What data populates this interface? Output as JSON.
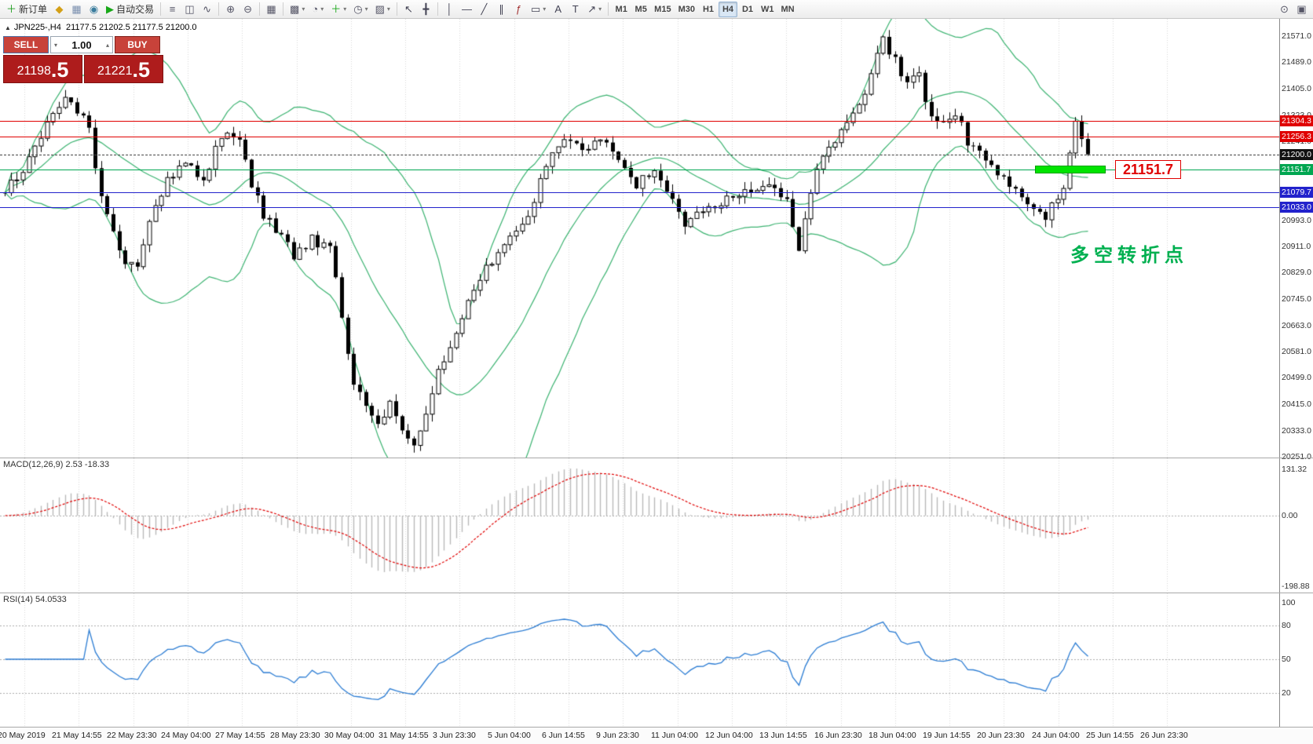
{
  "toolbar": {
    "items": [
      {
        "name": "new-order-button",
        "glyph": "＋",
        "color": "#1f9d1f",
        "label": "新订单"
      },
      {
        "name": "market-watch-button",
        "glyph": "◆",
        "color": "#d4a017"
      },
      {
        "name": "data-window-button",
        "glyph": "▦",
        "color": "#7a8fae"
      },
      {
        "name": "navigator-button",
        "glyph": "◉",
        "color": "#3b7d9e"
      },
      {
        "name": "autotrading-button",
        "glyph": "▶",
        "color": "#18a818",
        "label": "自动交易"
      },
      {
        "type": "sep"
      },
      {
        "name": "bar-chart-button",
        "glyph": "≡",
        "color": "#556"
      },
      {
        "name": "candlestick-chart-button",
        "glyph": "◫",
        "color": "#556"
      },
      {
        "name": "line-chart-button",
        "glyph": "∿",
        "color": "#556"
      },
      {
        "type": "sep"
      },
      {
        "name": "zoom-in-button",
        "glyph": "⊕",
        "color": "#556"
      },
      {
        "name": "zoom-out-button",
        "glyph": "⊖",
        "color": "#556"
      },
      {
        "type": "sep"
      },
      {
        "name": "tile-windows-button",
        "glyph": "▦",
        "color": "#556"
      },
      {
        "type": "sep"
      },
      {
        "name": "new-chart-button",
        "glyph": "▩",
        "color": "#556",
        "dd": true
      },
      {
        "name": "profiles-button",
        "glyph": "◔",
        "color": "#556",
        "dd": true
      },
      {
        "name": "indicators-button",
        "glyph": "＋",
        "color": "#18a818",
        "dd": true
      },
      {
        "name": "periods-button",
        "glyph": "◷",
        "color": "#556",
        "dd": true
      },
      {
        "name": "templates-button",
        "glyph": "▨",
        "color": "#556",
        "dd": true
      },
      {
        "type": "sep"
      },
      {
        "name": "cursor-button",
        "glyph": "↖",
        "color": "#445"
      },
      {
        "name": "crosshair-button",
        "glyph": "╋",
        "color": "#445"
      },
      {
        "type": "sep"
      },
      {
        "name": "vertical-line-button",
        "glyph": "│",
        "color": "#445"
      },
      {
        "name": "horizontal-line-button",
        "glyph": "―",
        "color": "#445"
      },
      {
        "name": "trendline-button",
        "glyph": "╱",
        "color": "#445"
      },
      {
        "name": "channel-button",
        "glyph": "∥",
        "color": "#445"
      },
      {
        "name": "fibonacci-button",
        "glyph": "ƒ",
        "color": "#a33333"
      },
      {
        "name": "shapes-button",
        "glyph": "▭",
        "color": "#445",
        "dd": true
      },
      {
        "name": "text-button",
        "glyph": "A",
        "color": "#445"
      },
      {
        "name": "label-button",
        "glyph": "T",
        "color": "#445"
      },
      {
        "name": "arrows-button",
        "glyph": "↗",
        "color": "#445",
        "dd": true
      },
      {
        "type": "sep"
      },
      {
        "type": "tf",
        "label": "M1"
      },
      {
        "type": "tf",
        "label": "M5"
      },
      {
        "type": "tf",
        "label": "M15"
      },
      {
        "type": "tf",
        "label": "M30"
      },
      {
        "type": "tf",
        "label": "H1"
      },
      {
        "type": "tf",
        "label": "H4"
      },
      {
        "type": "tf",
        "label": "D1"
      },
      {
        "type": "tf",
        "label": "W1"
      },
      {
        "type": "tf",
        "label": "MN"
      },
      {
        "name": "search-button",
        "glyph": "⊙",
        "color": "#556",
        "right": true
      },
      {
        "name": "windows-button",
        "glyph": "▣",
        "color": "#556"
      }
    ],
    "active_timeframe": "H4"
  },
  "trade_panel": {
    "sell_label": "SELL",
    "buy_label": "BUY",
    "volume": "1.00",
    "bid_main": "21198",
    "bid_big": ".5",
    "ask_main": "21221",
    "ask_big": ".5"
  },
  "chart": {
    "toggle_glyph": "▲",
    "symbol_period": "JPN225-,H4",
    "ohlc_text": "21177.5 21202.5 21177.5 21200.0",
    "annotation": "多空转折点",
    "price_tag": "21151.7",
    "levels": [
      {
        "price": 21304.3,
        "label": "21304.3",
        "color": "#E00000",
        "style": "solid"
      },
      {
        "price": 21256.3,
        "label": "21256.3",
        "color": "#E00000",
        "style": "solid"
      },
      {
        "price": 21200.0,
        "label": "21200.0",
        "color": "#444444",
        "style": "dashed",
        "badge": "#111111"
      },
      {
        "price": 21151.7,
        "label": "21151.7",
        "color": "#00A651",
        "style": "solid"
      },
      {
        "price": 21079.7,
        "label": "21079.7",
        "color": "#2222CC",
        "style": "solid"
      },
      {
        "price": 21033.0,
        "label": "21033.0",
        "color": "#2222CC",
        "style": "solid"
      }
    ],
    "y_ticks": [
      21571,
      21489,
      21405,
      21323,
      21241,
      20993,
      20911,
      20829,
      20745,
      20663,
      20581,
      20499,
      20415,
      20333,
      20251
    ],
    "highlight": {
      "price": 21151.7,
      "color": "#00E400",
      "border": "#00A000"
    }
  },
  "macd": {
    "label": "MACD(12,26,9) 2.53 -18.33",
    "ticks": [
      {
        "v": 131.32,
        "text": "131.32"
      },
      {
        "v": 0,
        "text": "0.00"
      },
      {
        "v": -198.88,
        "text": "-198.88"
      }
    ]
  },
  "rsi": {
    "label": "RSI(14) 54.0533",
    "ticks": [
      {
        "v": 100,
        "text": "100"
      },
      {
        "v": 80,
        "text": "80"
      },
      {
        "v": 50,
        "text": "50"
      },
      {
        "v": 20,
        "text": "20"
      }
    ],
    "levels": [
      80,
      50,
      20
    ]
  },
  "x_labels": [
    "20 May 2019",
    "21 May 14:55",
    "22 May 23:30",
    "24 May 04:00",
    "27 May 14:55",
    "28 May 23:30",
    "30 May 04:00",
    "31 May 14:55",
    "3 Jun 23:30",
    "5 Jun 04:00",
    "6 Jun 14:55",
    "9 Jun 23:30",
    "11 Jun 04:00",
    "12 Jun 04:00",
    "13 Jun 14:55",
    "16 Jun 23:30",
    "18 Jun 04:00",
    "19 Jun 14:55",
    "20 Jun 23:30",
    "24 Jun 04:00",
    "25 Jun 14:55",
    "26 Jun 23:30"
  ],
  "chart_data": {
    "type": "candlestick",
    "symbol": "JPN225-",
    "timeframe": "H4",
    "current_ohlc": {
      "open": 21177.5,
      "high": 21202.5,
      "low": 21177.5,
      "close": 21200.0
    },
    "bid": 21198.5,
    "ask": 21221.5,
    "y_range": [
      20251.0,
      21571.0
    ],
    "x_range": [
      "20 May 2019",
      "26 Jun 23:30"
    ],
    "horizontal_levels": [
      21304.3,
      21256.3,
      21200.0,
      21151.7,
      21079.7,
      21033.0
    ],
    "price_path": [
      [
        0,
        21080
      ],
      [
        4,
        21180
      ],
      [
        7,
        21300
      ],
      [
        10,
        21390
      ],
      [
        12,
        21340
      ],
      [
        14,
        21280
      ],
      [
        16,
        21060
      ],
      [
        18,
        20960
      ],
      [
        20,
        20870
      ],
      [
        22,
        20850
      ],
      [
        24,
        20980
      ],
      [
        27,
        21120
      ],
      [
        30,
        21170
      ],
      [
        33,
        21120
      ],
      [
        36,
        21260
      ],
      [
        39,
        21240
      ],
      [
        41,
        21100
      ],
      [
        43,
        21010
      ],
      [
        46,
        20950
      ],
      [
        48,
        20880
      ],
      [
        51,
        20930
      ],
      [
        54,
        20900
      ],
      [
        56,
        20700
      ],
      [
        58,
        20480
      ],
      [
        60,
        20400
      ],
      [
        62,
        20350
      ],
      [
        64,
        20430
      ],
      [
        66,
        20330
      ],
      [
        68,
        20290
      ],
      [
        70,
        20390
      ],
      [
        72,
        20520
      ],
      [
        75,
        20640
      ],
      [
        78,
        20780
      ],
      [
        81,
        20870
      ],
      [
        84,
        20950
      ],
      [
        87,
        21010
      ],
      [
        89,
        21110
      ],
      [
        91,
        21220
      ],
      [
        94,
        21240
      ],
      [
        97,
        21220
      ],
      [
        100,
        21240
      ],
      [
        102,
        21180
      ],
      [
        105,
        21100
      ],
      [
        108,
        21150
      ],
      [
        111,
        21050
      ],
      [
        113,
        20990
      ],
      [
        116,
        21030
      ],
      [
        119,
        21050
      ],
      [
        122,
        21070
      ],
      [
        125,
        21090
      ],
      [
        127,
        21110
      ],
      [
        130,
        21060
      ],
      [
        132,
        20900
      ],
      [
        135,
        21160
      ],
      [
        138,
        21240
      ],
      [
        140,
        21310
      ],
      [
        143,
        21390
      ],
      [
        146,
        21560
      ],
      [
        148,
        21490
      ],
      [
        150,
        21410
      ],
      [
        152,
        21450
      ],
      [
        154,
        21310
      ],
      [
        156,
        21290
      ],
      [
        158,
        21330
      ],
      [
        160,
        21240
      ],
      [
        163,
        21190
      ],
      [
        165,
        21150
      ],
      [
        167,
        21090
      ],
      [
        170,
        21050
      ],
      [
        173,
        21010
      ],
      [
        176,
        21080
      ],
      [
        178,
        21300
      ],
      [
        180,
        21200
      ]
    ],
    "indicators": [
      {
        "name": "Bollinger Bands",
        "period": 20,
        "deviation": 2,
        "color": "#3CB371"
      },
      {
        "name": "MACD",
        "fast": 12,
        "slow": 26,
        "signal": 9,
        "current": "2.53 -18.33",
        "scale_max": 131.32,
        "scale_min": -198.88,
        "histogram_color": "#B9B9B9",
        "signal_color": "#E00000"
      },
      {
        "name": "RSI",
        "period": 14,
        "current": 54.0533,
        "color": "#2B7CD3",
        "scale": [
          100,
          80,
          50,
          20
        ]
      }
    ]
  }
}
